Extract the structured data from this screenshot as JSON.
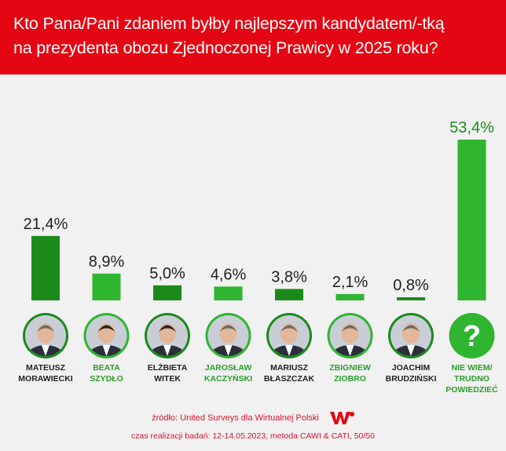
{
  "header": {
    "title_line1": "Kto Pana/Pani zdaniem byłby najlepszym kandydatem/-tką",
    "title_line2": "na prezydenta obozu Zjednoczonej Prawicy w 2025 roku?"
  },
  "chart_data": {
    "type": "bar",
    "title": "Kto Pana/Pani zdaniem byłby najlepszym kandydatem/-tką na prezydenta obozu Zjednoczonej Prawicy w 2025 roku?",
    "categories": [
      [
        "MATEUSZ",
        "MORAWIECKI"
      ],
      [
        "BEATA",
        "SZYDŁO"
      ],
      [
        "ELŻBIETA",
        "WITEK"
      ],
      [
        "JAROSŁAW",
        "KACZYŃSKI"
      ],
      [
        "MARIUSZ",
        "BŁASZCZAK"
      ],
      [
        "ZBIGNIEW",
        "ZIOBRO"
      ],
      [
        "JOACHIM",
        "BRUDZIŃSKI"
      ],
      [
        "NIE WIEM/",
        "TRUDNO",
        "POWIEDZIEĆ"
      ]
    ],
    "values": [
      21.4,
      8.9,
      5.0,
      4.6,
      3.8,
      2.1,
      0.8,
      53.4
    ],
    "value_labels": [
      "21,4%",
      "8,9%",
      "5,0%",
      "4,6%",
      "3,8%",
      "2,1%",
      "0,8%",
      "53,4%"
    ],
    "unit": "%",
    "ylim": [
      0,
      53.4
    ],
    "grid": false,
    "legend": "none"
  },
  "colors": {
    "header_bg": "#e40613",
    "page_bg": "#f1f1f1",
    "bar_dark": "#1b8a1b",
    "bar_light": "#2fb52f",
    "label_dark": "#1f1f1f",
    "label_green": "#1f8a1f",
    "name_dark": "#222222",
    "name_green": "#2a9e2a",
    "source_red": "#d9122b"
  },
  "icons": {
    "avatar": "portrait-photo-icon",
    "unknown": "question-mark-icon"
  },
  "footer": {
    "source": "źródło: United Surveys dla Wirtualnej Polski",
    "logo_text": "WP",
    "meta": "czas realizacji badań: 12-14.05.2023, metoda CAWI & CATI, 50/50"
  }
}
